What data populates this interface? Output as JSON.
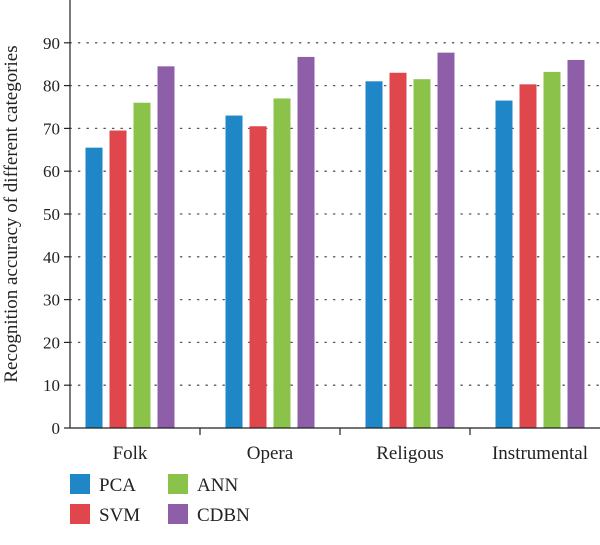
{
  "chart_data": {
    "type": "bar",
    "title": "",
    "xlabel": "",
    "ylabel": "Recognition accuracy of different categories",
    "categories": [
      "Folk",
      "Opera",
      "Religous",
      "Instrumental"
    ],
    "series": [
      {
        "name": "PCA",
        "color": "#1f86c8",
        "values": [
          65.5,
          73.0,
          81.0,
          76.5
        ]
      },
      {
        "name": "SVM",
        "color": "#e0474c",
        "values": [
          69.5,
          70.5,
          83.0,
          80.3
        ]
      },
      {
        "name": "ANN",
        "color": "#8bc34a",
        "values": [
          76.0,
          77.0,
          81.5,
          83.2
        ]
      },
      {
        "name": "CDBN",
        "color": "#8e5ea8",
        "values": [
          84.5,
          86.7,
          87.7,
          86.0
        ]
      }
    ],
    "ylim": [
      0,
      100
    ],
    "yticks": [
      0,
      10,
      20,
      30,
      40,
      50,
      60,
      70,
      80,
      90
    ],
    "grid": "dotted horizontal",
    "legend_position": "bottom-left"
  }
}
